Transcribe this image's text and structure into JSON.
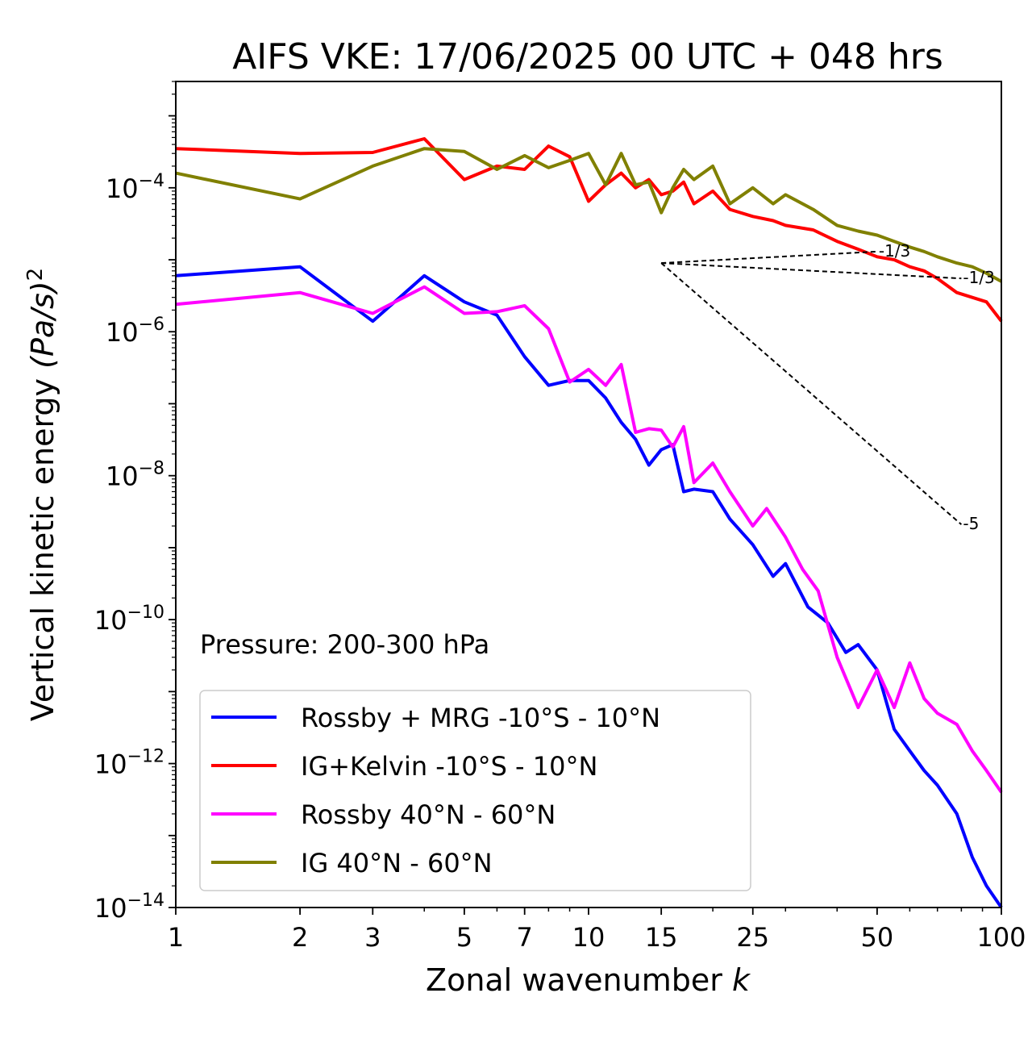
{
  "chart_data": {
    "type": "line",
    "title": "AIFS VKE: 17/06/2025 00 UTC + 048 hrs",
    "xlabel": "Zonal wavenumber k",
    "xlabel_main": "Zonal wavenumber",
    "xlabel_symbol": "k",
    "ylabel": "Vertical kinetic energy (Pa/s)^2",
    "ylabel_main": "Vertical kinetic energy",
    "ylabel_symbol": "(Pa/s)",
    "ylabel_power": "2",
    "x_scale": "log",
    "y_scale": "log",
    "xlim": [
      1,
      100
    ],
    "ylim": [
      1e-14,
      0.003
    ],
    "x_ticks": [
      1,
      2,
      3,
      5,
      7,
      10,
      15,
      25,
      50,
      100
    ],
    "x_tick_labels": [
      "1",
      "2",
      "3",
      "5",
      "7",
      "10",
      "15",
      "25",
      "50",
      "100"
    ],
    "y_ticks": [
      0.0001,
      1e-06,
      1e-08,
      1e-10,
      1e-12,
      1e-14
    ],
    "y_tick_labels": [
      {
        "base": "10",
        "exp": "−4"
      },
      {
        "base": "10",
        "exp": "−6"
      },
      {
        "base": "10",
        "exp": "−8"
      },
      {
        "base": "10",
        "exp": "−10"
      },
      {
        "base": "10",
        "exp": "−12"
      },
      {
        "base": "10",
        "exp": "−14"
      }
    ],
    "grid": false,
    "legend_position": "lower-left",
    "annotation": "Pressure: 200-300 hPa",
    "series": [
      {
        "name": "Rossby + MRG -10°S - 10°N",
        "color": "#0000ff",
        "points": [
          [
            1,
            6e-06
          ],
          [
            2,
            8e-06
          ],
          [
            3,
            1.4e-06
          ],
          [
            4,
            6e-06
          ],
          [
            5,
            2.6e-06
          ],
          [
            6,
            1.7e-06
          ],
          [
            7,
            4.5e-07
          ],
          [
            8,
            1.8e-07
          ],
          [
            9,
            2.1e-07
          ],
          [
            10,
            2.1e-07
          ],
          [
            11,
            1.2e-07
          ],
          [
            12,
            5.5e-08
          ],
          [
            13,
            3.2e-08
          ],
          [
            14,
            1.4e-08
          ],
          [
            15,
            2.3e-08
          ],
          [
            16,
            2.7e-08
          ],
          [
            17,
            6e-09
          ],
          [
            18,
            6.5e-09
          ],
          [
            20,
            6e-09
          ],
          [
            22,
            2.5e-09
          ],
          [
            25,
            1.1e-09
          ],
          [
            28,
            4e-10
          ],
          [
            30,
            6e-10
          ],
          [
            34,
            1.5e-10
          ],
          [
            38,
            9e-11
          ],
          [
            42,
            3.5e-11
          ],
          [
            45,
            4.5e-11
          ],
          [
            50,
            2e-11
          ],
          [
            55,
            3e-12
          ],
          [
            60,
            1.5e-12
          ],
          [
            65,
            8e-13
          ],
          [
            70,
            5e-13
          ],
          [
            78,
            2e-13
          ],
          [
            85,
            5e-14
          ],
          [
            92,
            2e-14
          ],
          [
            100,
            8e-15
          ]
        ]
      },
      {
        "name": "IG+Kelvin -10°S - 10°N",
        "color": "#ff0000",
        "points": [
          [
            1,
            0.00035
          ],
          [
            2,
            0.0003
          ],
          [
            3,
            0.00031
          ],
          [
            4,
            0.00048
          ],
          [
            5,
            0.00013
          ],
          [
            6,
            0.0002
          ],
          [
            7,
            0.00018
          ],
          [
            8,
            0.00038
          ],
          [
            9,
            0.00027
          ],
          [
            10,
            6.5e-05
          ],
          [
            11,
            0.00011
          ],
          [
            12,
            0.00016
          ],
          [
            13,
            0.0001
          ],
          [
            14,
            0.00013
          ],
          [
            15,
            8e-05
          ],
          [
            16,
            9e-05
          ],
          [
            17,
            0.00012
          ],
          [
            18,
            6e-05
          ],
          [
            20,
            9e-05
          ],
          [
            22,
            5e-05
          ],
          [
            25,
            4e-05
          ],
          [
            28,
            3.5e-05
          ],
          [
            30,
            3e-05
          ],
          [
            35,
            2.6e-05
          ],
          [
            40,
            1.8e-05
          ],
          [
            45,
            1.4e-05
          ],
          [
            50,
            1.1e-05
          ],
          [
            55,
            1e-05
          ],
          [
            60,
            8e-06
          ],
          [
            65,
            7e-06
          ],
          [
            70,
            5.5e-06
          ],
          [
            78,
            3.5e-06
          ],
          [
            85,
            3e-06
          ],
          [
            92,
            2.6e-06
          ],
          [
            100,
            1.4e-06
          ]
        ]
      },
      {
        "name": "Rossby 40°N - 60°N",
        "color": "#ff00ff",
        "points": [
          [
            1,
            2.4e-06
          ],
          [
            2,
            3.5e-06
          ],
          [
            3,
            1.8e-06
          ],
          [
            4,
            4.2e-06
          ],
          [
            5,
            1.8e-06
          ],
          [
            6,
            1.9e-06
          ],
          [
            7,
            2.3e-06
          ],
          [
            8,
            1.1e-06
          ],
          [
            9,
            2e-07
          ],
          [
            10,
            3e-07
          ],
          [
            11,
            1.8e-07
          ],
          [
            12,
            3.5e-07
          ],
          [
            13,
            4e-08
          ],
          [
            14,
            4.5e-08
          ],
          [
            15,
            4.3e-08
          ],
          [
            16,
            2.5e-08
          ],
          [
            17,
            4.8e-08
          ],
          [
            18,
            8e-09
          ],
          [
            20,
            1.5e-08
          ],
          [
            22,
            6e-09
          ],
          [
            25,
            2e-09
          ],
          [
            27,
            3.5e-09
          ],
          [
            30,
            1.4e-09
          ],
          [
            33,
            5e-10
          ],
          [
            36,
            2.5e-10
          ],
          [
            40,
            3e-11
          ],
          [
            45,
            6e-12
          ],
          [
            50,
            2e-11
          ],
          [
            55,
            6e-12
          ],
          [
            60,
            2.5e-11
          ],
          [
            65,
            8e-12
          ],
          [
            70,
            5e-12
          ],
          [
            78,
            3.5e-12
          ],
          [
            85,
            1.5e-12
          ],
          [
            92,
            8e-13
          ],
          [
            100,
            4e-13
          ]
        ]
      },
      {
        "name": "IG 40°N - 60°N",
        "color": "#808000",
        "points": [
          [
            1,
            0.00016
          ],
          [
            2,
            7e-05
          ],
          [
            3,
            0.0002
          ],
          [
            4,
            0.00035
          ],
          [
            5,
            0.00032
          ],
          [
            6,
            0.00018
          ],
          [
            7,
            0.00028
          ],
          [
            8,
            0.00019
          ],
          [
            9,
            0.00024
          ],
          [
            10,
            0.0003
          ],
          [
            11,
            0.00011
          ],
          [
            12,
            0.0003
          ],
          [
            13,
            0.00011
          ],
          [
            14,
            0.00012
          ],
          [
            15,
            4.5e-05
          ],
          [
            16,
            0.0001
          ],
          [
            17,
            0.00018
          ],
          [
            18,
            0.00013
          ],
          [
            20,
            0.0002
          ],
          [
            22,
            6e-05
          ],
          [
            25,
            0.0001
          ],
          [
            28,
            6e-05
          ],
          [
            30,
            8e-05
          ],
          [
            35,
            5e-05
          ],
          [
            40,
            3e-05
          ],
          [
            45,
            2.5e-05
          ],
          [
            50,
            2.2e-05
          ],
          [
            55,
            1.8e-05
          ],
          [
            60,
            1.5e-05
          ],
          [
            65,
            1.3e-05
          ],
          [
            70,
            1.1e-05
          ],
          [
            78,
            9e-06
          ],
          [
            85,
            8e-06
          ],
          [
            92,
            6.5e-06
          ],
          [
            100,
            5e-06
          ]
        ]
      }
    ],
    "reference_lines": [
      {
        "label": "-1/3",
        "color": "#000000",
        "points": [
          [
            15,
            9e-06
          ],
          [
            50,
            1.3e-05
          ]
        ]
      },
      {
        "label": "-1/3",
        "color": "#000000",
        "points": [
          [
            15,
            9e-06
          ],
          [
            80,
            5.5e-06
          ]
        ]
      },
      {
        "label": "-5",
        "color": "#000000",
        "points": [
          [
            15,
            9e-06
          ],
          [
            80,
            2.1e-09
          ]
        ]
      }
    ]
  }
}
